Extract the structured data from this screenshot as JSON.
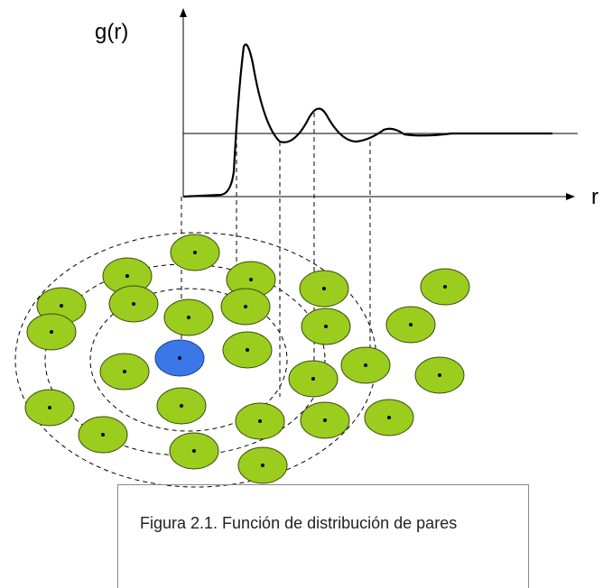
{
  "axis_labels": {
    "y": "g(r)",
    "x": "r"
  },
  "caption": "Figura 2.1. Función de distribución de pares"
}
